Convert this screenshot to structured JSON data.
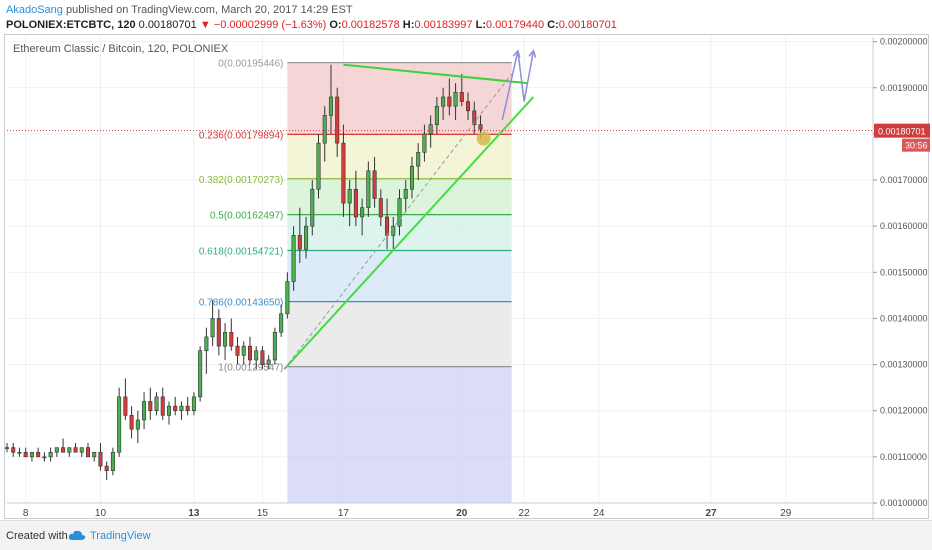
{
  "header": {
    "author": "AkadoSang",
    "published_text": "published on TradingView.com, March 20, 2017 14:29 EST",
    "symbol": "POLONIEX:ETCBTC, 120",
    "last": "0.00180701",
    "change": "▼ −0.00002999 (−1.63%)",
    "o_label": "O:",
    "o_value": "0.00182578",
    "h_label": "H:",
    "h_value": "0.00183997",
    "l_label": "L:",
    "l_value": "0.00179440",
    "c_label": "C:",
    "c_value": "0.00180701"
  },
  "chart_data": {
    "type": "candlestick",
    "title": "Ethereum Classic / Bitcoin, 120, POLONIEX",
    "ylim": [
      0.001,
      0.00201
    ],
    "y_ticks": [
      "0.00200000",
      "0.00190000",
      "0.00180000",
      "0.00170000",
      "0.00160000",
      "0.00150000",
      "0.00140000",
      "0.00130000",
      "0.00120000",
      "0.00110000",
      "0.00100000"
    ],
    "x_ticks": [
      "8",
      "10",
      "13",
      "15",
      "17",
      "20",
      "22",
      "24",
      "27",
      "29"
    ],
    "x_tick_positions": [
      0.8,
      2.0,
      3.5,
      4.6,
      5.9,
      7.8,
      8.8,
      10.0,
      11.8,
      13.0
    ],
    "x_range": [
      0.5,
      14.4
    ],
    "price_label": "0.00180701",
    "current_price": 0.00180701,
    "countdown": "30:56",
    "fib_levels": [
      {
        "label": "0(0.00195446)",
        "value": 0.00195446,
        "color": "#999999"
      },
      {
        "label": "0.236(0.00179894)",
        "value": 0.00179894,
        "color": "#d63a3a"
      },
      {
        "label": "0.382(0.00170273)",
        "value": 0.00170273,
        "color": "#8fb83a"
      },
      {
        "label": "0.5(0.00162497)",
        "value": 0.00162497,
        "color": "#3fae3f"
      },
      {
        "label": "0.618(0.00154721)",
        "value": 0.00154721,
        "color": "#2aae7e"
      },
      {
        "label": "0.786(0.00143650)",
        "value": 0.0014365,
        "color": "#3a8fd0"
      },
      {
        "label": "1(0.00129547)",
        "value": 0.00129547,
        "color": "#888888"
      }
    ],
    "fib_x_range": [
      5.0,
      8.6
    ],
    "fib_bottom": 0.001,
    "fib_zone_colors": [
      "#f1c4c4",
      "#eef1c4",
      "#cdf0cd",
      "#cdf0e6",
      "#cde3f3",
      "#e2e2e2",
      "#cccdf3"
    ],
    "trendlines": [
      {
        "name": "support-trendline",
        "x1": 4.95,
        "y1": 0.00129,
        "x2": 8.95,
        "y2": 0.00188,
        "color": "#3fe03f"
      },
      {
        "name": "resistance-trendline",
        "x1": 5.9,
        "y1": 0.00195,
        "x2": 8.85,
        "y2": 0.00191,
        "color": "#3fce3f"
      },
      {
        "name": "dashed-trendline",
        "x1": 4.95,
        "y1": 0.00129,
        "x2": 8.6,
        "y2": 0.00193,
        "color": "#999999"
      }
    ],
    "projection_path": [
      [
        8.45,
        0.00183
      ],
      [
        8.7,
        0.00198
      ],
      [
        8.8,
        0.00187
      ],
      [
        8.95,
        0.00198
      ]
    ],
    "highlight_point": {
      "x": 8.15,
      "y": 0.00179
    },
    "candles": [
      [
        0.5,
        0.00112,
        0.00113,
        0.00111,
        0.00112
      ],
      [
        0.6,
        0.00112,
        0.00113,
        0.0011,
        0.00111
      ],
      [
        0.7,
        0.00111,
        0.00112,
        0.0011,
        0.00111
      ],
      [
        0.8,
        0.00111,
        0.00112,
        0.0011,
        0.0011
      ],
      [
        0.9,
        0.0011,
        0.00111,
        0.00109,
        0.00111
      ],
      [
        1.0,
        0.00111,
        0.00112,
        0.0011,
        0.0011
      ],
      [
        1.1,
        0.0011,
        0.00111,
        0.00109,
        0.0011
      ],
      [
        1.2,
        0.0011,
        0.00112,
        0.00109,
        0.00111
      ],
      [
        1.3,
        0.00111,
        0.00112,
        0.0011,
        0.00112
      ],
      [
        1.4,
        0.00112,
        0.00114,
        0.00111,
        0.00111
      ],
      [
        1.5,
        0.00111,
        0.00112,
        0.0011,
        0.00112
      ],
      [
        1.6,
        0.00112,
        0.00113,
        0.00111,
        0.00111
      ],
      [
        1.7,
        0.00111,
        0.00112,
        0.0011,
        0.00112
      ],
      [
        1.8,
        0.00112,
        0.00113,
        0.00111,
        0.0011
      ],
      [
        1.9,
        0.0011,
        0.00111,
        0.00109,
        0.00111
      ],
      [
        2.0,
        0.00111,
        0.00113,
        0.00107,
        0.00108
      ],
      [
        2.1,
        0.00108,
        0.00109,
        0.00105,
        0.00107
      ],
      [
        2.2,
        0.00107,
        0.00112,
        0.00106,
        0.00111
      ],
      [
        2.3,
        0.00111,
        0.00125,
        0.0011,
        0.00123
      ],
      [
        2.4,
        0.00123,
        0.00127,
        0.00118,
        0.00119
      ],
      [
        2.5,
        0.00119,
        0.00121,
        0.00114,
        0.00116
      ],
      [
        2.6,
        0.00116,
        0.0012,
        0.00113,
        0.00118
      ],
      [
        2.7,
        0.00118,
        0.00124,
        0.00116,
        0.00122
      ],
      [
        2.8,
        0.00122,
        0.00125,
        0.00118,
        0.0012
      ],
      [
        2.9,
        0.0012,
        0.00124,
        0.00119,
        0.00123
      ],
      [
        3.0,
        0.00123,
        0.00125,
        0.00118,
        0.00119
      ],
      [
        3.1,
        0.00119,
        0.00122,
        0.00117,
        0.00121
      ],
      [
        3.2,
        0.00121,
        0.00123,
        0.00119,
        0.0012
      ],
      [
        3.3,
        0.0012,
        0.00122,
        0.00118,
        0.00121
      ],
      [
        3.4,
        0.00121,
        0.00123,
        0.00119,
        0.0012
      ],
      [
        3.5,
        0.0012,
        0.00124,
        0.00119,
        0.00123
      ],
      [
        3.6,
        0.00123,
        0.00134,
        0.00122,
        0.00133
      ],
      [
        3.7,
        0.00133,
        0.00138,
        0.00128,
        0.00136
      ],
      [
        3.8,
        0.00136,
        0.00144,
        0.00134,
        0.0014
      ],
      [
        3.9,
        0.0014,
        0.00142,
        0.00132,
        0.00134
      ],
      [
        4.0,
        0.00134,
        0.00139,
        0.00131,
        0.00137
      ],
      [
        4.1,
        0.00137,
        0.0014,
        0.00133,
        0.00134
      ],
      [
        4.2,
        0.00134,
        0.00136,
        0.0013,
        0.00132
      ],
      [
        4.3,
        0.00132,
        0.00135,
        0.0013,
        0.00134
      ],
      [
        4.4,
        0.00134,
        0.00136,
        0.0013,
        0.00131
      ],
      [
        4.5,
        0.00131,
        0.00134,
        0.00129,
        0.00133
      ],
      [
        4.6,
        0.00133,
        0.00134,
        0.00129,
        0.0013
      ],
      [
        4.7,
        0.0013,
        0.00132,
        0.00129,
        0.00131
      ],
      [
        4.8,
        0.00131,
        0.00138,
        0.0013,
        0.00137
      ],
      [
        4.9,
        0.00137,
        0.00143,
        0.00136,
        0.00141
      ],
      [
        5.0,
        0.00141,
        0.0015,
        0.0014,
        0.00148
      ],
      [
        5.1,
        0.00148,
        0.0016,
        0.00146,
        0.00158
      ],
      [
        5.2,
        0.00158,
        0.00164,
        0.00152,
        0.00155
      ],
      [
        5.3,
        0.00155,
        0.00162,
        0.00153,
        0.0016
      ],
      [
        5.4,
        0.0016,
        0.0017,
        0.00158,
        0.00168
      ],
      [
        5.5,
        0.00168,
        0.0018,
        0.00166,
        0.00178
      ],
      [
        5.6,
        0.00178,
        0.00186,
        0.00174,
        0.00184
      ],
      [
        5.7,
        0.00184,
        0.00195,
        0.0018,
        0.00188
      ],
      [
        5.8,
        0.00188,
        0.0019,
        0.00175,
        0.00178
      ],
      [
        5.9,
        0.00178,
        0.00182,
        0.00162,
        0.00165
      ],
      [
        6.0,
        0.00165,
        0.0017,
        0.0016,
        0.00168
      ],
      [
        6.1,
        0.00168,
        0.00172,
        0.0016,
        0.00162
      ],
      [
        6.2,
        0.00162,
        0.00166,
        0.00158,
        0.00164
      ],
      [
        6.3,
        0.00164,
        0.00174,
        0.00162,
        0.00172
      ],
      [
        6.4,
        0.00172,
        0.00175,
        0.00164,
        0.00166
      ],
      [
        6.5,
        0.00166,
        0.00168,
        0.0016,
        0.00162
      ],
      [
        6.6,
        0.00162,
        0.00166,
        0.00155,
        0.00158
      ],
      [
        6.7,
        0.00158,
        0.00162,
        0.00155,
        0.0016
      ],
      [
        6.8,
        0.0016,
        0.00168,
        0.00158,
        0.00166
      ],
      [
        6.9,
        0.00166,
        0.0017,
        0.00163,
        0.00168
      ],
      [
        7.0,
        0.00168,
        0.00175,
        0.00166,
        0.00173
      ],
      [
        7.1,
        0.00173,
        0.00178,
        0.0017,
        0.00176
      ],
      [
        7.2,
        0.00176,
        0.00182,
        0.00174,
        0.0018
      ],
      [
        7.3,
        0.0018,
        0.00184,
        0.00177,
        0.00182
      ],
      [
        7.4,
        0.00182,
        0.00188,
        0.0018,
        0.00186
      ],
      [
        7.5,
        0.00186,
        0.0019,
        0.00183,
        0.00188
      ],
      [
        7.6,
        0.00188,
        0.00192,
        0.00184,
        0.00186
      ],
      [
        7.7,
        0.00186,
        0.00191,
        0.00183,
        0.00189
      ],
      [
        7.8,
        0.00189,
        0.00193,
        0.00186,
        0.00187
      ],
      [
        7.9,
        0.00187,
        0.00189,
        0.00183,
        0.00185
      ],
      [
        8.0,
        0.00185,
        0.00187,
        0.0018,
        0.00182
      ],
      [
        8.1,
        0.00182,
        0.00184,
        0.00179,
        0.00181
      ]
    ]
  },
  "footer": {
    "created_with": "Created with",
    "brand": "TradingView"
  }
}
